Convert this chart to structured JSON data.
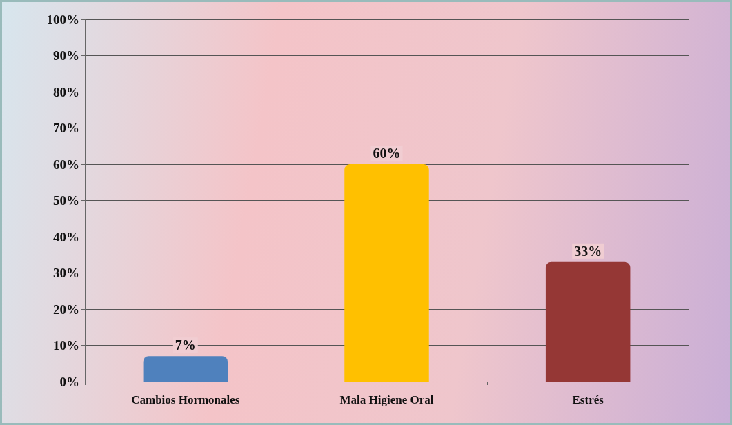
{
  "chart_data": {
    "type": "bar",
    "categories": [
      "Cambios Hormonales",
      "Mala Higiene Oral",
      "Estrés"
    ],
    "values": [
      7,
      60,
      33
    ],
    "colors": [
      "#4f81bd",
      "#ffc000",
      "#953735"
    ],
    "value_labels": [
      "7%",
      "60%",
      "33%"
    ],
    "ylim": [
      0,
      100
    ],
    "yticks": [
      {
        "value": 0,
        "label": "0%"
      },
      {
        "value": 10,
        "label": "10%"
      },
      {
        "value": 20,
        "label": "20%"
      },
      {
        "value": 30,
        "label": "30%"
      },
      {
        "value": 40,
        "label": "40%"
      },
      {
        "value": 50,
        "label": "50%"
      },
      {
        "value": 60,
        "label": "60%"
      },
      {
        "value": 70,
        "label": "70%"
      },
      {
        "value": 80,
        "label": "80%"
      },
      {
        "value": 90,
        "label": "90%"
      },
      {
        "value": 100,
        "label": "100%"
      }
    ],
    "grid": true
  }
}
